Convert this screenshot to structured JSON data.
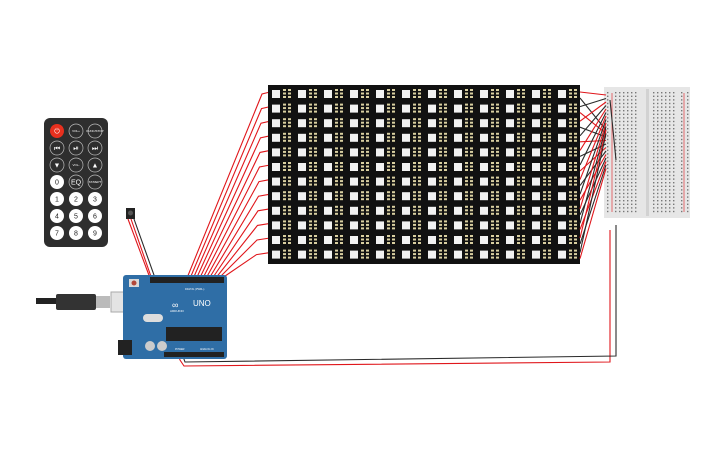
{
  "remote": {
    "buttons": [
      "⏻",
      "VOL+",
      "FUNC/STOP",
      "⏮",
      "⏯",
      "⏭",
      "▼",
      "VOL-",
      "▲",
      "0",
      "EQ",
      "ST/REPT",
      "1",
      "2",
      "3",
      "4",
      "5",
      "6",
      "7",
      "8",
      "9"
    ]
  },
  "arduino": {
    "brand": "ARDUINO",
    "model": "UNO",
    "digital_label": "DIGITAL (PWM~)",
    "power_label": "POWER",
    "analog_label": "ANALOG IN"
  },
  "colors": {
    "wire_red": "#e0161b",
    "wire_black": "#2a2a2a",
    "arduino_blue": "#2f6ea6",
    "matrix_bg": "#111111",
    "breadboard": "#e6e6e6",
    "remote_power": "#e8301e"
  }
}
